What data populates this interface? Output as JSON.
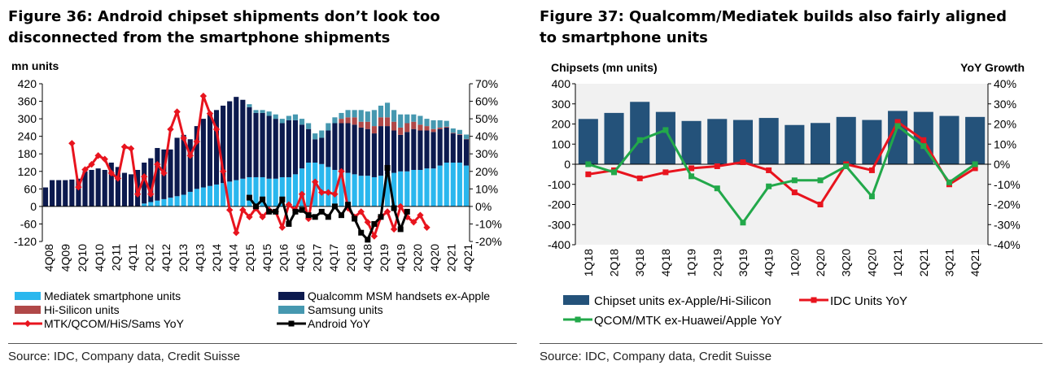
{
  "charts": [
    {
      "type": "bar",
      "title": "Figure 36: Android chipset shipments don’t look too disconnected from the smartphone shipments",
      "ylabel_left": "mn units",
      "ylabel_right": "",
      "source": "Source: IDC, Company data, Credit Suisse",
      "ylim_left": [
        -120,
        420
      ],
      "yticks_left": [
        "420",
        "360",
        "300",
        "240",
        "180",
        "120",
        "60",
        "0",
        "-60",
        "-120"
      ],
      "ylim_right": [
        -20,
        70
      ],
      "yticks_right": [
        "70%",
        "60%",
        "50%",
        "40%",
        "30%",
        "20%",
        "10%",
        "0%",
        "-10%",
        "-20%"
      ],
      "x_labels": [
        "4Q08",
        "4Q09",
        "2Q10",
        "4Q10",
        "2Q11",
        "4Q11",
        "2Q12",
        "4Q12",
        "2Q13",
        "4Q13",
        "2Q14",
        "4Q14",
        "2Q15",
        "4Q15",
        "2Q16",
        "4Q16",
        "2Q17",
        "4Q17",
        "2Q18",
        "4Q18",
        "2Q19",
        "4Q19",
        "2Q20",
        "4Q20",
        "2Q21",
        "4Q21"
      ],
      "bar_series": [
        {
          "name": "Mediatek smartphone units",
          "color": "#2ab7ee",
          "values": [
            0,
            0,
            0,
            0,
            0,
            0,
            0,
            0,
            0,
            0,
            0,
            0,
            0,
            0,
            0,
            10,
            15,
            20,
            25,
            30,
            35,
            40,
            50,
            60,
            65,
            70,
            75,
            80,
            85,
            90,
            95,
            100,
            100,
            100,
            95,
            95,
            100,
            100,
            110,
            130,
            150,
            150,
            145,
            135,
            125,
            120,
            115,
            110,
            105,
            105,
            100,
            105,
            110,
            115,
            120,
            120,
            125,
            125,
            130,
            130,
            140,
            150,
            150,
            150,
            140
          ]
        },
        {
          "name": "Qualcomm MSM handsets ex-Apple",
          "color": "#0c1a4e",
          "values": [
            65,
            90,
            90,
            90,
            92,
            95,
            120,
            125,
            130,
            125,
            150,
            135,
            115,
            110,
            125,
            140,
            150,
            180,
            170,
            165,
            200,
            205,
            180,
            215,
            235,
            250,
            255,
            265,
            275,
            285,
            270,
            240,
            220,
            220,
            215,
            205,
            185,
            195,
            185,
            150,
            115,
            80,
            90,
            125,
            160,
            165,
            170,
            170,
            165,
            160,
            150,
            170,
            165,
            145,
            125,
            135,
            140,
            135,
            130,
            125,
            125,
            120,
            100,
            95,
            90
          ]
        },
        {
          "name": "Hi-Silicon units",
          "color": "#b04848",
          "values": [
            0,
            0,
            0,
            0,
            0,
            0,
            0,
            0,
            0,
            0,
            0,
            0,
            0,
            0,
            0,
            0,
            0,
            0,
            0,
            0,
            0,
            0,
            0,
            0,
            0,
            0,
            0,
            0,
            0,
            0,
            0,
            0,
            0,
            0,
            0,
            0,
            0,
            0,
            0,
            0,
            0,
            0,
            0,
            0,
            0,
            15,
            20,
            25,
            20,
            25,
            25,
            30,
            30,
            30,
            25,
            30,
            25,
            20,
            15,
            10,
            5,
            3,
            2,
            2,
            1
          ]
        },
        {
          "name": "Samsung units",
          "color": "#4698b0",
          "values": [
            0,
            0,
            0,
            0,
            0,
            0,
            0,
            0,
            0,
            0,
            0,
            0,
            0,
            0,
            0,
            0,
            0,
            0,
            0,
            0,
            0,
            0,
            0,
            0,
            0,
            0,
            0,
            0,
            0,
            0,
            0,
            10,
            10,
            10,
            15,
            15,
            15,
            15,
            20,
            20,
            20,
            20,
            25,
            25,
            20,
            20,
            25,
            25,
            40,
            35,
            55,
            40,
            50,
            40,
            45,
            30,
            25,
            30,
            25,
            30,
            25,
            20,
            15,
            15,
            15
          ]
        }
      ],
      "line_series": [
        {
          "name": "MTK/QCOM/HiS/Sams YoY",
          "color": "#e8141e",
          "marker": "diamond",
          "start": 4,
          "values": [
            36,
            11,
            21,
            24,
            29,
            27,
            19,
            16,
            34,
            33,
            7,
            17,
            7,
            24,
            19,
            44,
            54,
            39,
            29,
            37,
            63,
            53,
            44,
            20,
            -2,
            -15,
            -2,
            -6,
            -1,
            -6,
            -2,
            -3,
            -12,
            1,
            -2,
            7,
            -7,
            14,
            8,
            8,
            7,
            20,
            -1,
            -6,
            -3,
            -9,
            -17,
            -6,
            -3,
            -13,
            0,
            -6,
            -9,
            -5,
            -12
          ]
        },
        {
          "name": "Android YoY",
          "color": "#000000",
          "marker": "square",
          "start": 31,
          "values": [
            5,
            0,
            4,
            -3,
            -3,
            4,
            -10,
            -3,
            -2,
            -5,
            -6,
            -3,
            -6,
            0,
            -5,
            1,
            -7,
            -15,
            -19,
            -10,
            -6,
            22,
            -1,
            -13,
            -3
          ]
        }
      ]
    },
    {
      "type": "bar",
      "title": "Figure 37: Qualcomm/Mediatek builds also fairly aligned to smartphone units",
      "ylabel_left": "Chipsets (mn units)",
      "ylabel_right": "YoY Growth",
      "source": "Source: IDC, Company data, Credit Suisse",
      "ylim_left": [
        -400,
        400
      ],
      "yticks_left": [
        "400",
        "300",
        "200",
        "100",
        "0",
        "-100",
        "-200",
        "-300",
        "-400"
      ],
      "ylim_right": [
        -40,
        40
      ],
      "yticks_right": [
        "40%",
        "30%",
        "20%",
        "10%",
        "0%",
        "-10%",
        "-20%",
        "-30%",
        "-40%"
      ],
      "categories": [
        "1Q18",
        "2Q18",
        "3Q18",
        "4Q18",
        "1Q19",
        "2Q19",
        "3Q19",
        "4Q19",
        "1Q20",
        "2Q20",
        "3Q20",
        "4Q20",
        "1Q21",
        "2Q21",
        "3Q21",
        "4Q21"
      ],
      "bar_series": [
        {
          "name": "Chipset units ex-Apple/Hi-Silicon",
          "color": "#24527a",
          "values": [
            225,
            255,
            310,
            260,
            215,
            225,
            220,
            230,
            195,
            205,
            235,
            220,
            265,
            260,
            240,
            235
          ]
        }
      ],
      "line_series": [
        {
          "name": "IDC Units YoY",
          "color": "#e8141e",
          "marker": "square",
          "values": [
            -5,
            -3,
            -7,
            -4,
            -2,
            -1,
            1,
            -3,
            -14,
            -20,
            0,
            -3,
            21,
            12,
            -10,
            -2
          ]
        },
        {
          "name": "QCOM/MTK ex-Huawei/Apple YoY",
          "color": "#22a84a",
          "marker": "square",
          "values": [
            0,
            -4,
            12,
            17,
            -6,
            -12,
            -29,
            -11,
            -8,
            -8,
            -1,
            -16,
            19,
            9,
            -9,
            0
          ]
        }
      ]
    }
  ]
}
